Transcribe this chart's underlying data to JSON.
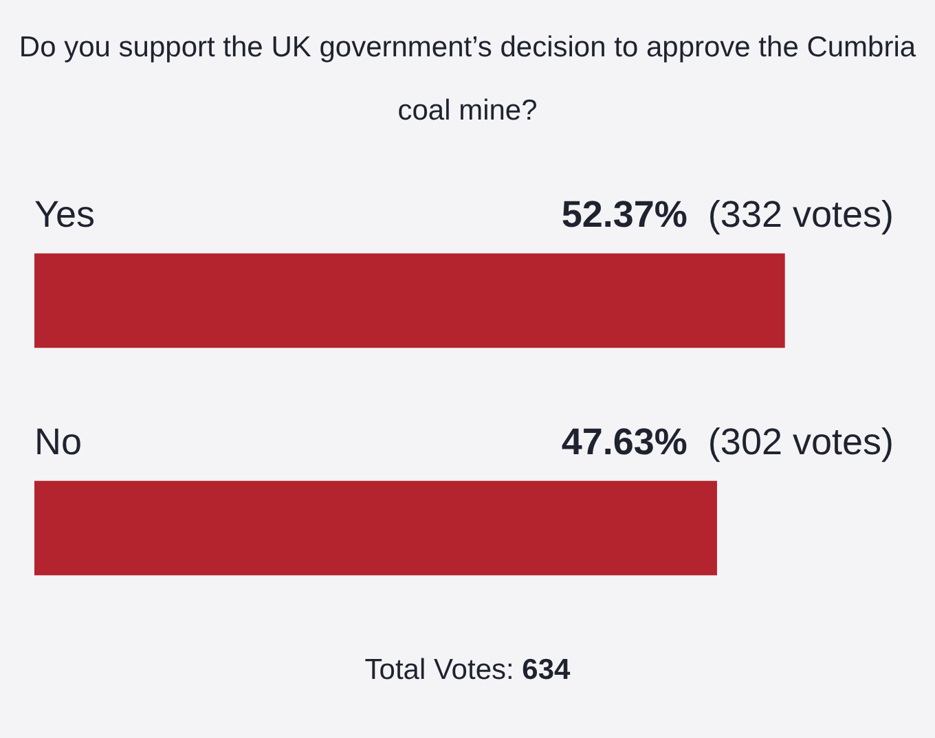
{
  "chart_data": {
    "type": "bar",
    "orientation": "horizontal",
    "title": "Do you support the UK government’s decision to approve the Cumbria coal mine?",
    "categories": [
      "Yes",
      "No"
    ],
    "values": [
      52.37,
      47.63
    ],
    "color": "#b3242f",
    "value_labels": [
      "52.37%  (332 votes)",
      "47.63%  (302 votes)"
    ],
    "annotations": [
      "Total Votes: 634"
    ],
    "legend": false,
    "tick_labels": false
  }
}
